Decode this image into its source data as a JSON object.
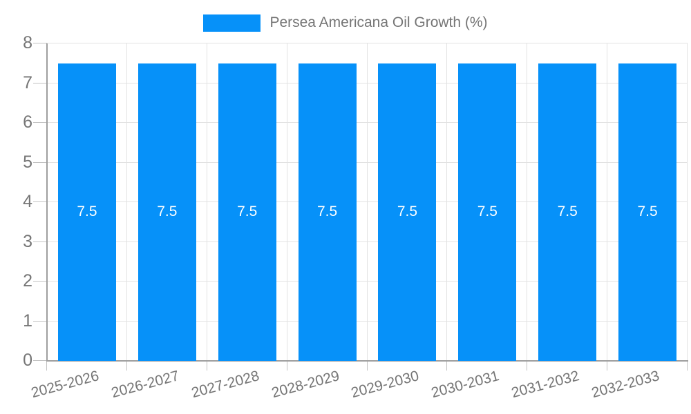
{
  "legend": {
    "label": "Persea Americana Oil Growth (%)"
  },
  "colors": {
    "bar": "#0691F9",
    "grid": "#E2E2E2",
    "axis": "#9E9E9E",
    "tick": "#C2C2C2",
    "text": "#757575",
    "bar_label": "#FFFFFF",
    "background": "#FFFFFF"
  },
  "chart_data": {
    "type": "bar",
    "title": "Persea Americana Oil Growth (%)",
    "categories": [
      "2025-2026",
      "2026-2027",
      "2027-2028",
      "2028-2029",
      "2029-2030",
      "2030-2031",
      "2031-2032",
      "2032-2033"
    ],
    "values": [
      7.5,
      7.5,
      7.5,
      7.5,
      7.5,
      7.5,
      7.5,
      7.5
    ],
    "bar_labels": [
      "7.5",
      "7.5",
      "7.5",
      "7.5",
      "7.5",
      "7.5",
      "7.5",
      "7.5"
    ],
    "xlabel": "",
    "ylabel": "",
    "ylim": [
      0,
      8
    ],
    "yticks": [
      0,
      1,
      2,
      3,
      4,
      5,
      6,
      7,
      8
    ],
    "grid": true,
    "legend_position": "top"
  }
}
